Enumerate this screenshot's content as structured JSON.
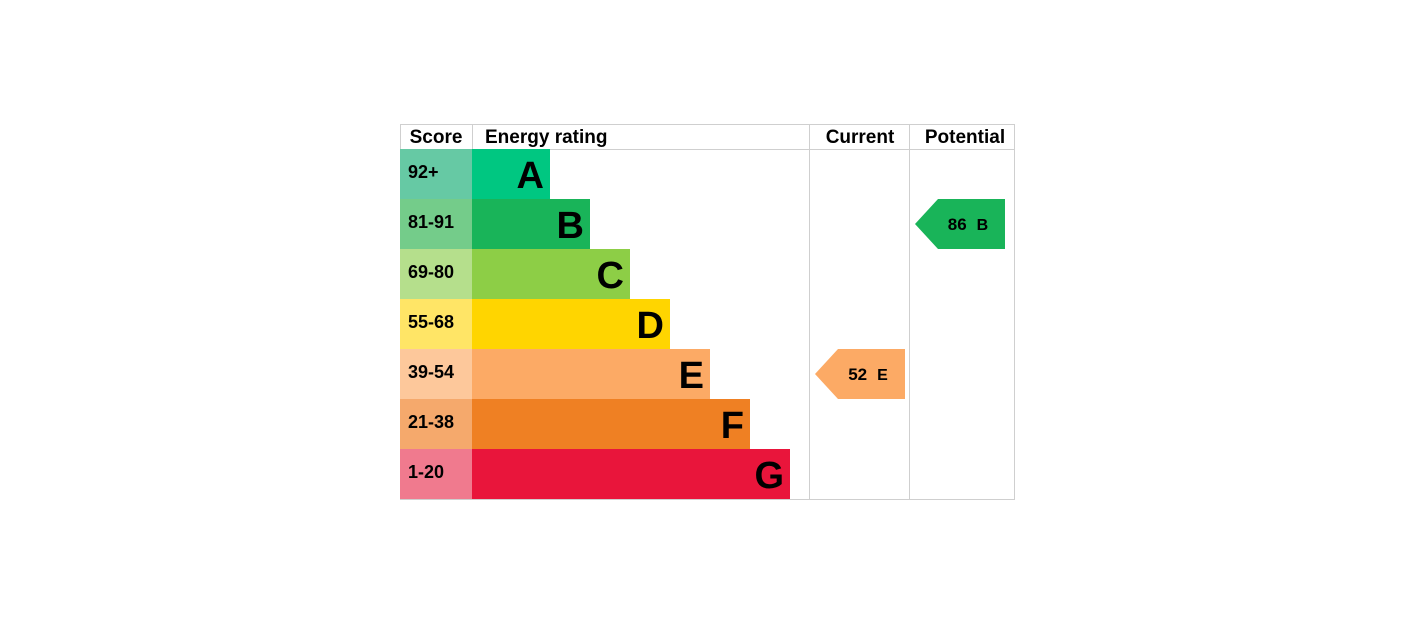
{
  "headers": {
    "score": "Score",
    "rating": "Energy rating",
    "current": "Current",
    "potential": "Potential"
  },
  "chart_data": {
    "type": "bar",
    "bands": [
      {
        "letter": "A",
        "range": "92+",
        "color": "#00c781",
        "score_color": "#66c9a4"
      },
      {
        "letter": "B",
        "range": "81-91",
        "color": "#19b459",
        "score_color": "#74cc8a"
      },
      {
        "letter": "C",
        "range": "69-80",
        "color": "#8dce46",
        "score_color": "#b5df8c"
      },
      {
        "letter": "D",
        "range": "55-68",
        "color": "#ffd500",
        "score_color": "#ffe566"
      },
      {
        "letter": "E",
        "range": "39-54",
        "color": "#fcaa65",
        "score_color": "#fdc89b"
      },
      {
        "letter": "F",
        "range": "21-38",
        "color": "#ef8023",
        "score_color": "#f5a96c"
      },
      {
        "letter": "G",
        "range": "1-20",
        "color": "#e9153b",
        "score_color": "#f07a8e"
      }
    ],
    "current": {
      "value": 52,
      "letter": "E",
      "color": "#fcaa65"
    },
    "potential": {
      "value": 86,
      "letter": "B",
      "color": "#19b459"
    }
  }
}
